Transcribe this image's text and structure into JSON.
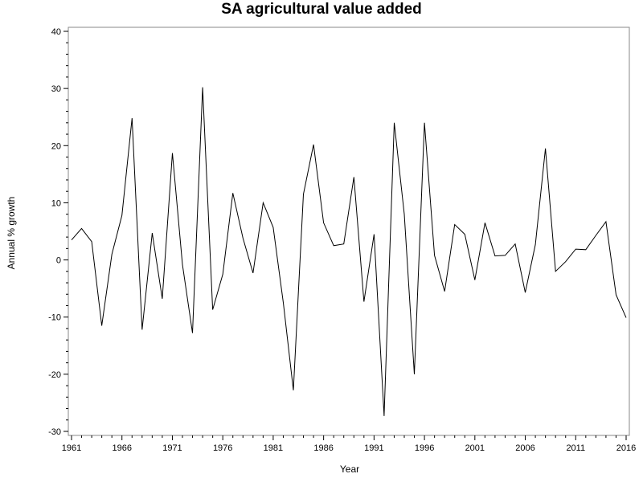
{
  "chart_data": {
    "type": "line",
    "title": "SA agricultural value added",
    "xlabel": "Year",
    "ylabel": "Annual % growth",
    "xlim": [
      1961,
      2016
    ],
    "ylim": [
      -30,
      40
    ],
    "x_ticks": [
      1961,
      1966,
      1971,
      1976,
      1981,
      1986,
      1991,
      1996,
      2001,
      2006,
      2011,
      2016
    ],
    "y_ticks": [
      -30,
      -20,
      -10,
      0,
      10,
      20,
      30,
      40
    ],
    "grid": false,
    "line_color": "#000000",
    "series": [
      {
        "x": [
          1961,
          1962,
          1963,
          1964,
          1965,
          1966,
          1967,
          1968,
          1969,
          1970,
          1971,
          1972,
          1973,
          1974,
          1975,
          1976,
          1977,
          1978,
          1979,
          1980,
          1981,
          1982,
          1983,
          1984,
          1985,
          1986,
          1987,
          1988,
          1989,
          1990,
          1991,
          1992,
          1993,
          1994,
          1995,
          1996,
          1997,
          1998,
          1999,
          2000,
          2001,
          2002,
          2003,
          2004,
          2005,
          2006,
          2007,
          2008,
          2009,
          2010,
          2011,
          2012,
          2013,
          2014,
          2015,
          2016
        ],
        "values": [
          3.5,
          5.5,
          3.2,
          -11.5,
          1.0,
          7.8,
          24.8,
          -12.2,
          4.7,
          -6.8,
          18.7,
          -0.8,
          -12.8,
          30.2,
          -8.7,
          -2.5,
          11.7,
          3.8,
          -2.3,
          10.0,
          5.7,
          -7.5,
          -22.8,
          11.5,
          20.2,
          6.5,
          2.5,
          2.8,
          14.5,
          -7.3,
          4.5,
          -27.3,
          24.0,
          8.0,
          -20.0,
          24.0,
          0.8,
          -5.5,
          6.2,
          4.5,
          -3.5,
          6.5,
          0.7,
          0.8,
          2.8,
          -5.7,
          2.7,
          19.5,
          -2.0,
          -0.3,
          1.9,
          1.8,
          4.3,
          6.7,
          -6.1,
          -10.1
        ]
      }
    ]
  }
}
